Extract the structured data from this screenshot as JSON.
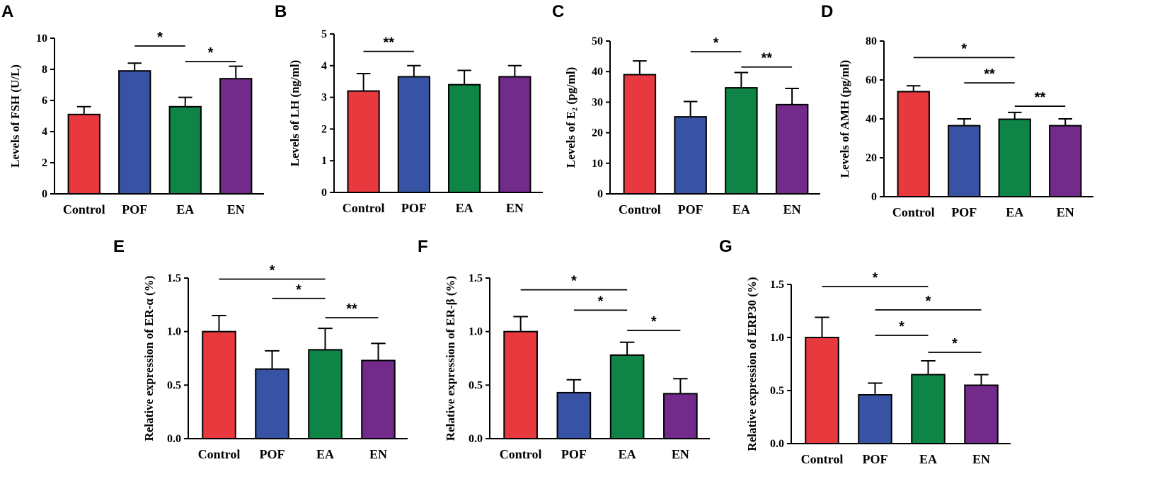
{
  "figure": {
    "background": "#ffffff"
  },
  "colors": {
    "Control": "#E8393F",
    "POF": "#3853A4",
    "EA": "#0E8446",
    "EN": "#722A8B"
  },
  "chart_data": [
    {
      "panel": "A",
      "type": "bar",
      "title": "",
      "xlabel": "",
      "ylabel": "Levels of FSH (U/L)",
      "categories": [
        "Control",
        "POF",
        "EA",
        "EN"
      ],
      "values": [
        5.1,
        7.9,
        5.6,
        7.4
      ],
      "errors": [
        0.5,
        0.5,
        0.6,
        0.8
      ],
      "ylim": [
        0,
        10
      ],
      "yticks": [
        "0",
        "2",
        "4",
        "6",
        "8",
        "10"
      ],
      "significance": [
        {
          "from": "POF",
          "to": "EA",
          "label": "*",
          "y": 9.5
        },
        {
          "from": "EA",
          "to": "EN",
          "label": "*",
          "y": 8.5
        }
      ]
    },
    {
      "panel": "B",
      "type": "bar",
      "title": "",
      "xlabel": "",
      "ylabel": "Levels of LH (ng/ml)",
      "categories": [
        "Control",
        "POF",
        "EA",
        "EN"
      ],
      "values": [
        3.2,
        3.65,
        3.4,
        3.65
      ],
      "errors": [
        0.55,
        0.35,
        0.45,
        0.35
      ],
      "ylim": [
        0,
        5
      ],
      "yticks": [
        "0",
        "1",
        "2",
        "3",
        "4",
        "5"
      ],
      "significance": [
        {
          "from": "Control",
          "to": "POF",
          "label": "**",
          "y": 4.45
        }
      ]
    },
    {
      "panel": "C",
      "type": "bar",
      "title": "",
      "xlabel": "",
      "ylabel": "Levels of E₂ (pg/ml)",
      "categories": [
        "Control",
        "POF",
        "EA",
        "EN"
      ],
      "values": [
        39,
        25.2,
        34.7,
        29.2
      ],
      "errors": [
        4.5,
        5,
        5,
        5.3
      ],
      "ylim": [
        0,
        50
      ],
      "yticks": [
        "0",
        "10",
        "20",
        "30",
        "40",
        "50"
      ],
      "significance": [
        {
          "from": "POF",
          "to": "EA",
          "label": "*",
          "y": 46.5
        },
        {
          "from": "EA",
          "to": "EN",
          "label": "**",
          "y": 41.5
        }
      ]
    },
    {
      "panel": "D",
      "type": "bar",
      "title": "",
      "xlabel": "",
      "ylabel": "Levels of AMH (pg/ml)",
      "categories": [
        "Control",
        "POF",
        "EA",
        "EN"
      ],
      "values": [
        54,
        36.5,
        39.8,
        36.5
      ],
      "errors": [
        3,
        3.5,
        3.5,
        3.5
      ],
      "ylim": [
        0,
        80
      ],
      "yticks": [
        "0",
        "20",
        "40",
        "60",
        "80"
      ],
      "significance": [
        {
          "from": "Control",
          "to": "EA",
          "label": "*",
          "y": 71.5
        },
        {
          "from": "POF",
          "to": "EA",
          "label": "**",
          "y": 58.5
        },
        {
          "from": "EA",
          "to": "EN",
          "label": "**",
          "y": 46.5
        }
      ]
    },
    {
      "panel": "E",
      "type": "bar",
      "title": "",
      "xlabel": "",
      "ylabel": "Relative expression of ER-α (%)",
      "categories": [
        "Control",
        "POF",
        "EA",
        "EN"
      ],
      "values": [
        1.0,
        0.65,
        0.83,
        0.73
      ],
      "errors": [
        0.15,
        0.17,
        0.2,
        0.16
      ],
      "ylim": [
        0,
        1.5
      ],
      "yticks": [
        "0.0",
        "0.5",
        "1.0",
        "1.5"
      ],
      "significance": [
        {
          "from": "Control",
          "to": "EA",
          "label": "*",
          "y": 1.49
        },
        {
          "from": "POF",
          "to": "EA",
          "label": "*",
          "y": 1.31
        },
        {
          "from": "EA",
          "to": "EN",
          "label": "**",
          "y": 1.13
        }
      ]
    },
    {
      "panel": "F",
      "type": "bar",
      "title": "",
      "xlabel": "",
      "ylabel": "Relative expression of ER-β (%)",
      "categories": [
        "Control",
        "POF",
        "EA",
        "EN"
      ],
      "values": [
        1.0,
        0.43,
        0.78,
        0.42
      ],
      "errors": [
        0.14,
        0.12,
        0.12,
        0.14
      ],
      "ylim": [
        0,
        1.5
      ],
      "yticks": [
        "0.0",
        "0.5",
        "1.0",
        "1.5"
      ],
      "significance": [
        {
          "from": "Control",
          "to": "EA",
          "label": "*",
          "y": 1.39
        },
        {
          "from": "POF",
          "to": "EA",
          "label": "*",
          "y": 1.2
        },
        {
          "from": "EA",
          "to": "EN",
          "label": "*",
          "y": 1.01
        }
      ]
    },
    {
      "panel": "G",
      "type": "bar",
      "title": "",
      "xlabel": "",
      "ylabel": "Relative expression of ERP30 (%)",
      "categories": [
        "Control",
        "POF",
        "EA",
        "EN"
      ],
      "values": [
        1.0,
        0.46,
        0.65,
        0.55
      ],
      "errors": [
        0.19,
        0.11,
        0.13,
        0.1
      ],
      "ylim": [
        0,
        1.5
      ],
      "yticks": [
        "0.0",
        "0.5",
        "1.0",
        "1.5"
      ],
      "significance": [
        {
          "from": "Control",
          "to": "EA",
          "label": "*",
          "y": 1.48
        },
        {
          "from": "POF",
          "to": "EN",
          "label": "*",
          "y": 1.26
        },
        {
          "from": "POF",
          "to": "EA",
          "label": "*",
          "y": 1.02
        },
        {
          "from": "EA",
          "to": "EN",
          "label": "*",
          "y": 0.86
        }
      ]
    }
  ]
}
